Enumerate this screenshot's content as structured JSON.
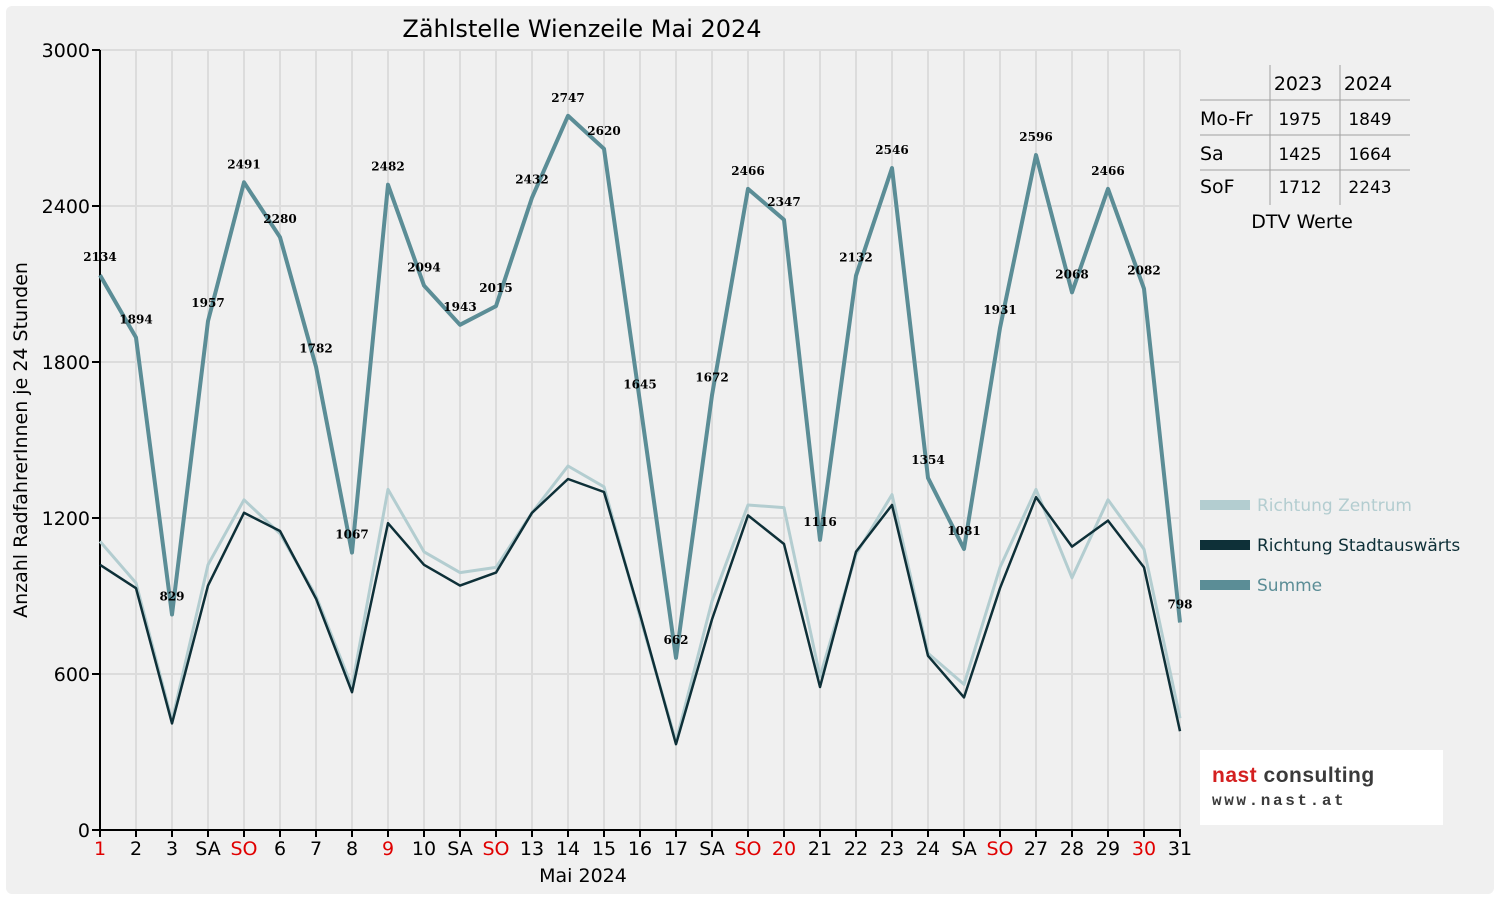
{
  "chart_data": {
    "type": "line",
    "title": "Zählstelle Wienzeile Mai 2024",
    "xlabel": "Mai 2024",
    "ylabel": "Anzahl RadfahrerInnen je 24 Stunden",
    "ylim": [
      0,
      3000
    ],
    "yticks": [
      0,
      600,
      1200,
      1800,
      2400,
      3000
    ],
    "grid": true,
    "legend_position": "right",
    "categories": [
      "1",
      "2",
      "3",
      "SA",
      "SO",
      "6",
      "7",
      "8",
      "9",
      "10",
      "SA",
      "SO",
      "13",
      "14",
      "15",
      "16",
      "17",
      "SA",
      "SO",
      "20",
      "21",
      "22",
      "23",
      "24",
      "SA",
      "SO",
      "27",
      "28",
      "29",
      "30",
      "31"
    ],
    "category_colors": [
      "#e00000",
      "#000000",
      "#000000",
      "#000000",
      "#e00000",
      "#000000",
      "#000000",
      "#000000",
      "#e00000",
      "#000000",
      "#000000",
      "#e00000",
      "#000000",
      "#000000",
      "#000000",
      "#000000",
      "#000000",
      "#000000",
      "#e00000",
      "#e00000",
      "#000000",
      "#000000",
      "#000000",
      "#000000",
      "#000000",
      "#e00000",
      "#000000",
      "#000000",
      "#000000",
      "#e00000",
      "#000000"
    ],
    "series": [
      {
        "name": "Richtung Zentrum",
        "color": "#b3cdd0",
        "values": [
          1110,
          950,
          420,
          1020,
          1270,
          1140,
          900,
          550,
          1310,
          1070,
          990,
          1010,
          1220,
          1400,
          1320,
          820,
          340,
          880,
          1250,
          1240,
          590,
          1060,
          1290,
          680,
          560,
          1010,
          1310,
          970,
          1270,
          1080,
          430
        ]
      },
      {
        "name": "Richtung Stadtauswärts",
        "color": "#0e3038",
        "values": [
          1020,
          930,
          410,
          940,
          1220,
          1150,
          890,
          530,
          1180,
          1020,
          940,
          990,
          1220,
          1350,
          1300,
          830,
          330,
          810,
          1210,
          1100,
          550,
          1070,
          1250,
          670,
          510,
          930,
          1280,
          1090,
          1190,
          1010,
          380
        ]
      },
      {
        "name": "Summe",
        "color": "#5b8d96",
        "values": [
          2134,
          1894,
          829,
          1957,
          2491,
          2280,
          1782,
          1067,
          2482,
          2094,
          1943,
          2015,
          2432,
          2747,
          2620,
          1645,
          662,
          1672,
          2466,
          2347,
          1116,
          2132,
          2546,
          1354,
          1081,
          1931,
          2596,
          2068,
          2466,
          2082,
          798
        ]
      }
    ],
    "data_labels": [
      "2134",
      "1894",
      "829",
      "1957",
      "2491",
      "2280",
      "1782",
      "1067",
      "2482",
      "2094",
      "1943",
      "2015",
      "2432",
      "2747",
      "2620",
      "1645",
      "662",
      "1672",
      "2466",
      "2347",
      "1116",
      "2132",
      "2546",
      "1354",
      "1081",
      "1931",
      "2596",
      "2068",
      "2466",
      "2082",
      "798"
    ]
  },
  "dtv_table": {
    "col_headers": [
      "2023",
      "2024"
    ],
    "rows": [
      {
        "label": "Mo-Fr",
        "v2023": "1975",
        "v2024": "1849"
      },
      {
        "label": "Sa",
        "v2023": "1425",
        "v2024": "1664"
      },
      {
        "label": "SoF",
        "v2023": "1712",
        "v2024": "2243"
      }
    ],
    "caption": "DTV Werte"
  },
  "logo": {
    "name_part1": "nast",
    "name_part2": " consulting",
    "url": "www.nast.at",
    "colors": {
      "accent": "#d42020",
      "text": "#3a3a3a"
    }
  }
}
